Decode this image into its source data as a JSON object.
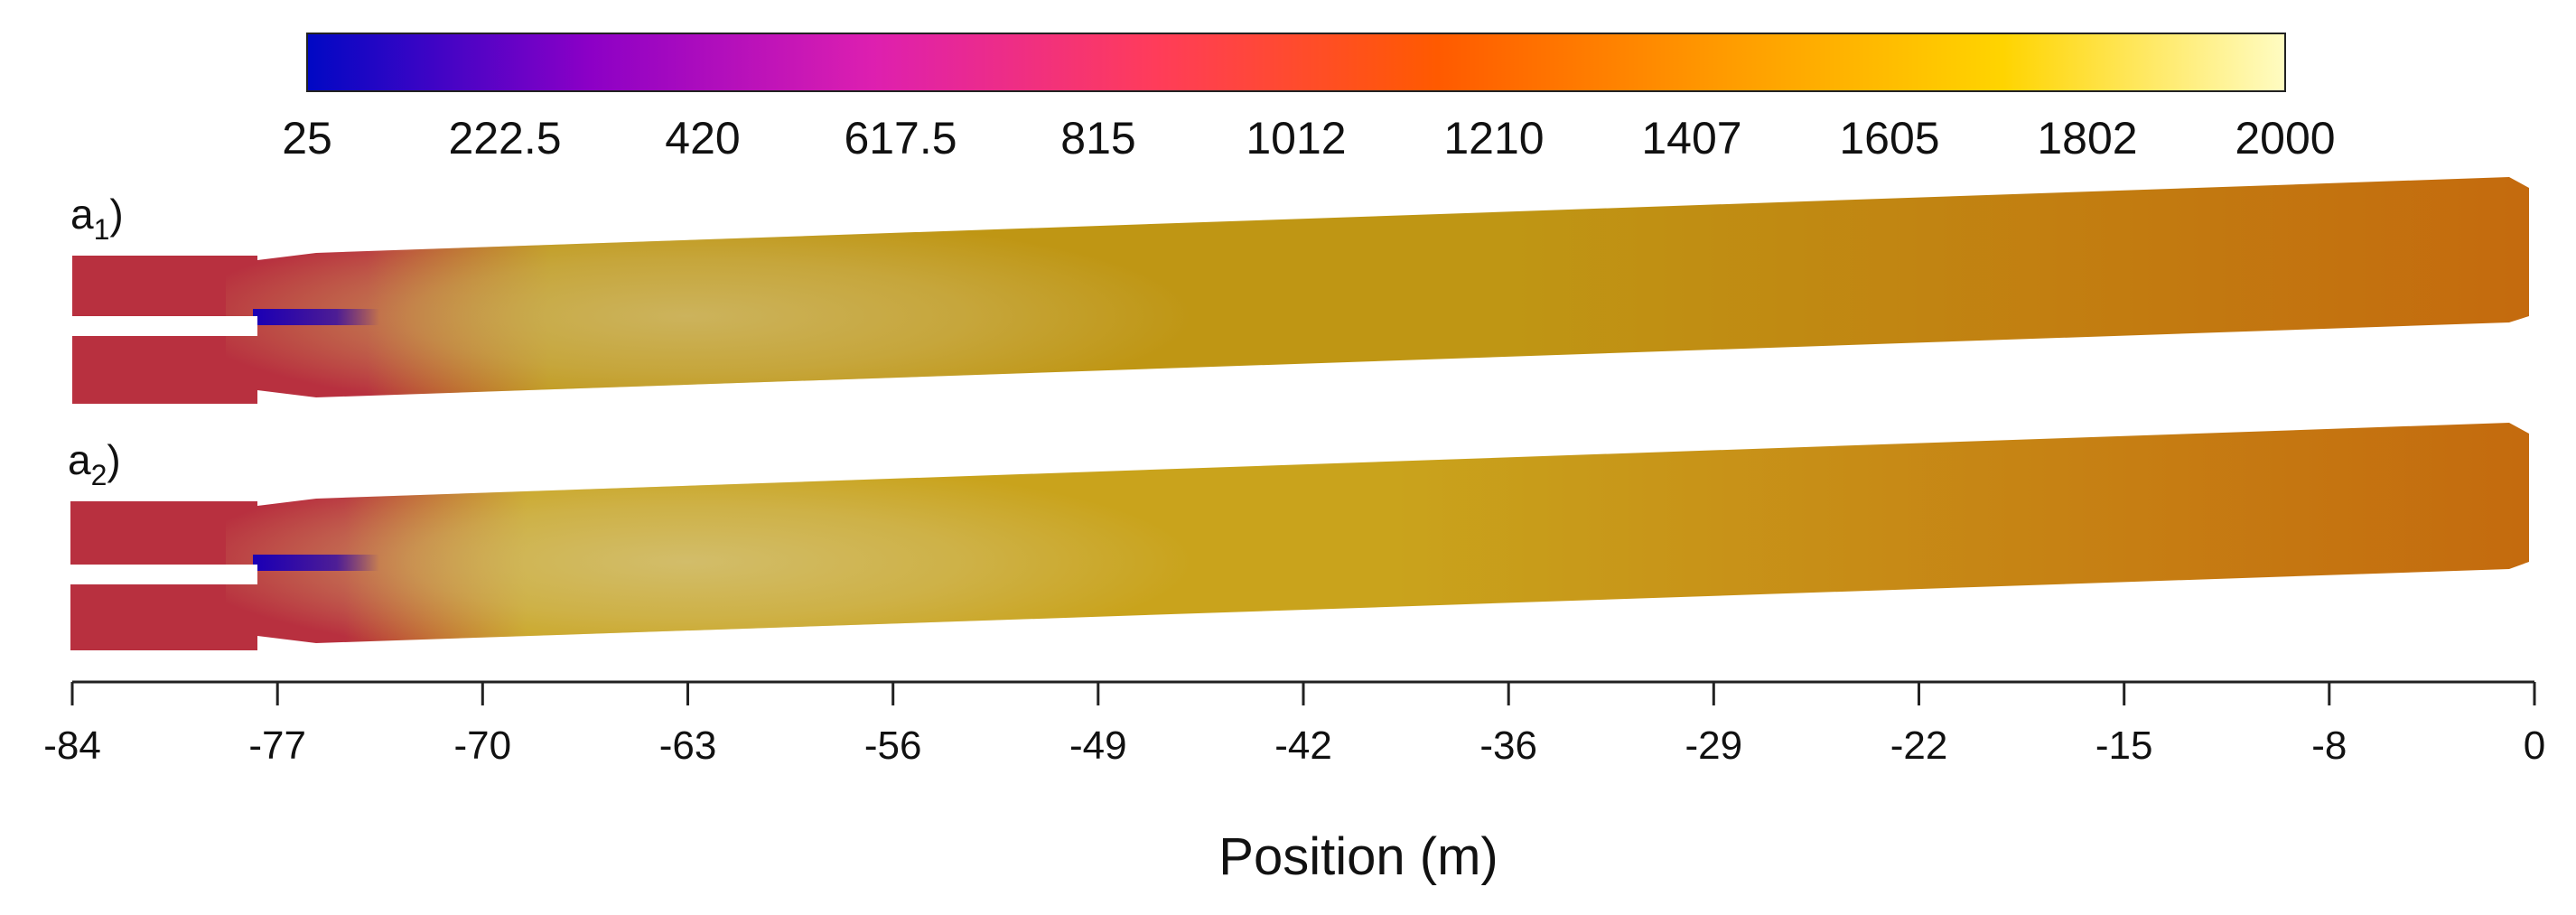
{
  "chart_data": {
    "type": "heatmap",
    "title": "",
    "xlabel": "Position (m)",
    "ylabel": "",
    "xlim": [
      -84,
      0
    ],
    "x_ticks": [
      "-84",
      "-77",
      "-70",
      "-63",
      "-56",
      "-49",
      "-42",
      "-36",
      "-29",
      "-22",
      "-15",
      "-8",
      "0"
    ],
    "colorbar": {
      "min": 25,
      "max": 2000,
      "ticks": [
        "25",
        "222.5",
        "420",
        "617.5",
        "815",
        "1012",
        "1210",
        "1407",
        "1605",
        "1802",
        "2000"
      ],
      "colormap": "gnuplot-like (blue → purple → magenta → red → orange → yellow → light yellow)",
      "colors": [
        "#0008c4",
        "#8c00c6",
        "#dd1fb0",
        "#ff3c5a",
        "#ff5a00",
        "#ff9a00",
        "#ffd400",
        "#fffcc2"
      ]
    },
    "panels": [
      {
        "label_main": "a",
        "label_sub": "1",
        "colors": {
          "inlet": "#b8303f",
          "cold_core": "#1c00b4",
          "flame_peak": "#ccb35c",
          "body_mid": "#bf9614",
          "outlet": "#c46a0e"
        }
      },
      {
        "label_main": "a",
        "label_sub": "2",
        "colors": {
          "inlet": "#b8303f",
          "cold_core": "#1c00b4",
          "flame_peak": "#d2bd6a",
          "body_mid": "#c9a31c",
          "outlet": "#c46a0e"
        }
      }
    ],
    "grid": false
  }
}
